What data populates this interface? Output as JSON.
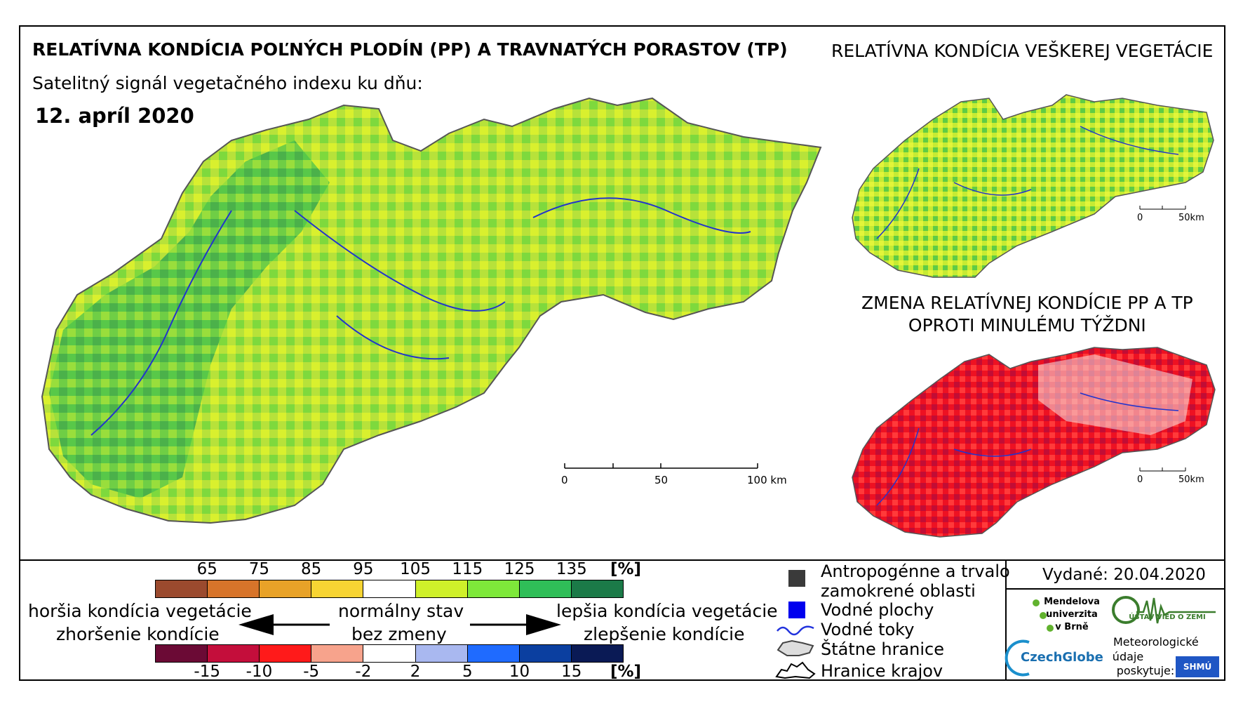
{
  "header": {
    "title": "RELATÍVNA KONDÍCIA POĽNÝCH PLODÍN (PP) A TRAVNATÝCH PORASTOV (TP)",
    "subtitle": "Satelitný signál vegetačného indexu ku dňu:",
    "date": "12. apríl 2020"
  },
  "right_panels": {
    "vegetation_title": "RELATÍVNA KONDÍCIA VEŠKEREJ VEGETÁCIE",
    "change_title_line1": "ZMENA RELATÍVNEJ KONDÍCIE PP A TP",
    "change_title_line2": "OPROTI MINULÉMU TÝŽDNI"
  },
  "scale_bars": {
    "main": {
      "labels": [
        "0",
        "50",
        "100 km"
      ]
    },
    "small": {
      "labels": [
        "0",
        "50km"
      ]
    }
  },
  "legend": {
    "condition_scale": {
      "ticks": [
        "65",
        "75",
        "85",
        "95",
        "105",
        "115",
        "125",
        "135"
      ],
      "unit": "[%]",
      "colors": [
        "#9b4a2e",
        "#d7742a",
        "#e8a228",
        "#f7d433",
        "#ffffff",
        "#cff02a",
        "#7ee83a",
        "#2fbe58",
        "#1b7a48"
      ]
    },
    "change_scale": {
      "ticks": [
        "-15",
        "-10",
        "-5",
        "-2",
        "2",
        "5",
        "10",
        "15"
      ],
      "unit": "[%]",
      "colors": [
        "#6b0a35",
        "#c40e3b",
        "#ff1a1a",
        "#f7a38c",
        "#ffffff",
        "#a9b8f0",
        "#1f6bff",
        "#0b3fa0",
        "#0a1a55"
      ]
    },
    "left_text_1": "horšia kondícia vegetácie",
    "left_text_2": "zhoršenie kondície",
    "center_text_1": "normálny stav",
    "center_text_2": "bez zmeny",
    "right_text_1": "lepšia kondícia vegetácie",
    "right_text_2": "zlepšenie kondície",
    "symbols": [
      {
        "label": "Antropogénne a trvalo",
        "label2": "zamokrené oblasti",
        "color": "#3a3a3a"
      },
      {
        "label": "Vodné plochy",
        "color": "#0000ee"
      },
      {
        "label": "Vodné toky",
        "color": "#2233dd"
      },
      {
        "label": "Štátne hranice"
      },
      {
        "label": "Hranice krajov"
      }
    ]
  },
  "footer": {
    "issued": "Vydané: 20.04.2020",
    "logos": {
      "mendel_line1": "Mendelova",
      "mendel_line2": "univerzita",
      "mendel_line3": "v Brně",
      "czechglobe": "CzechGlobe",
      "uvoz": "ÚSTAV VIED O ZEMI",
      "meteo_line1": "Meteorologické",
      "meteo_line2": "údaje",
      "meteo_line3": "poskytuje:",
      "shmu": "SHMÚ"
    }
  }
}
